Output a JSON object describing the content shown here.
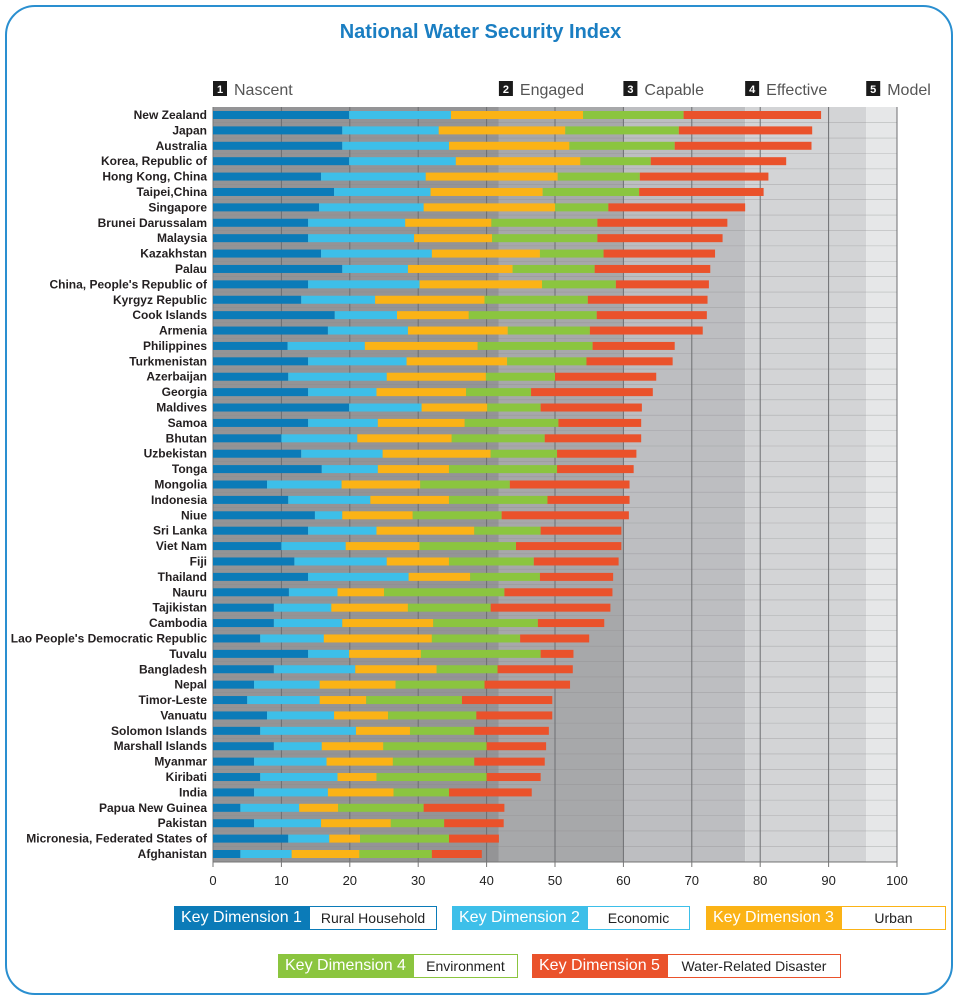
{
  "chart_data": {
    "type": "bar",
    "orientation": "horizontal",
    "stacked": true,
    "title": "National Water Security Index",
    "xlim": [
      0,
      100
    ],
    "xticks": [
      0,
      10,
      20,
      30,
      40,
      50,
      60,
      70,
      80,
      90,
      100
    ],
    "grid": true,
    "legend_position": "bottom",
    "stages": [
      {
        "num": "1",
        "label": "Nascent",
        "from": 0,
        "to": 41.8,
        "color": "#949496"
      },
      {
        "num": "2",
        "label": "Engaged",
        "from": 41.8,
        "to": 60,
        "color": "#a7a8aa"
      },
      {
        "num": "3",
        "label": "Capable",
        "from": 60,
        "to": 77.8,
        "color": "#bdbec1"
      },
      {
        "num": "4",
        "label": "Effective",
        "from": 77.8,
        "to": 95.5,
        "color": "#d3d4d6"
      },
      {
        "num": "5",
        "label": "Model",
        "from": 95.5,
        "to": 100,
        "color": "#e6e7e8"
      }
    ],
    "series": [
      {
        "name": "Key Dimension 1",
        "desc": "Rural Household",
        "color": "#0b7bb8"
      },
      {
        "name": "Key Dimension 2",
        "desc": "Economic",
        "color": "#3dbfe9"
      },
      {
        "name": "Key Dimension 3",
        "desc": "Urban",
        "color": "#fbb316"
      },
      {
        "name": "Key Dimension 4",
        "desc": "Environment",
        "color": "#8bc53f"
      },
      {
        "name": "Key Dimension 5",
        "desc": "Water-Related Disaster",
        "color": "#ea522b"
      }
    ],
    "categories": [
      "New Zealand",
      "Japan",
      "Australia",
      "Korea, Republic of",
      "Hong Kong, China",
      "Taipei,China",
      "Singapore",
      "Brunei Darussalam",
      "Malaysia",
      "Kazakhstan",
      "Palau",
      "China, People's Republic of",
      "Kyrgyz Republic",
      "Cook Islands",
      "Armenia",
      "Philippines",
      "Turkmenistan",
      "Azerbaijan",
      "Georgia",
      "Maldives",
      "Samoa",
      "Bhutan",
      "Uzbekistan",
      "Tonga",
      "Mongolia",
      "Indonesia",
      "Niue",
      "Sri Lanka",
      "Viet Nam",
      "Fiji",
      "Thailand",
      "Nauru",
      "Tajikistan",
      "Cambodia",
      "Lao People's Democratic Republic",
      "Tuvalu",
      "Bangladesh",
      "Nepal",
      "Timor-Leste",
      "Vanuatu",
      "Solomon Islands",
      "Marshall Islands",
      "Myanmar",
      "Kiribati",
      "India",
      "Papua New Guinea",
      "Pakistan",
      "Micronesia, Federated States of",
      "Afghanistan"
    ],
    "values": [
      [
        19.9,
        14.9,
        19.3,
        14.7,
        20.1
      ],
      [
        18.9,
        14.1,
        18.5,
        16.6,
        19.5
      ],
      [
        18.9,
        15.6,
        17.6,
        15.4,
        20.0
      ],
      [
        19.9,
        15.6,
        18.2,
        10.3,
        19.8
      ],
      [
        15.8,
        15.3,
        19.3,
        12.0,
        18.8
      ],
      [
        17.7,
        14.1,
        16.4,
        14.1,
        18.2
      ],
      [
        15.5,
        15.3,
        19.2,
        7.8,
        20.0
      ],
      [
        13.9,
        14.2,
        12.6,
        15.5,
        19.0
      ],
      [
        13.9,
        15.5,
        11.4,
        15.4,
        18.3
      ],
      [
        15.8,
        16.2,
        15.8,
        9.3,
        16.3
      ],
      [
        18.9,
        9.6,
        15.3,
        12.0,
        16.9
      ],
      [
        13.9,
        16.3,
        17.9,
        10.8,
        13.6
      ],
      [
        12.9,
        10.8,
        16.0,
        15.1,
        17.5
      ],
      [
        17.8,
        9.1,
        10.5,
        18.7,
        16.1
      ],
      [
        16.8,
        11.7,
        14.6,
        12.0,
        16.5
      ],
      [
        10.9,
        11.3,
        16.5,
        16.8,
        12.0
      ],
      [
        13.9,
        14.4,
        14.7,
        11.6,
        12.6
      ],
      [
        11.0,
        14.4,
        14.5,
        10.1,
        14.8
      ],
      [
        13.9,
        10.0,
        13.1,
        9.5,
        17.8
      ],
      [
        19.9,
        10.6,
        9.6,
        7.8,
        14.8
      ],
      [
        13.9,
        10.2,
        12.7,
        13.7,
        12.1
      ],
      [
        10.0,
        11.1,
        13.8,
        13.6,
        14.1
      ],
      [
        12.9,
        11.9,
        15.8,
        9.7,
        11.6
      ],
      [
        15.9,
        8.2,
        10.4,
        15.8,
        11.2
      ],
      [
        7.9,
        10.9,
        11.5,
        13.1,
        17.5
      ],
      [
        11.0,
        12.0,
        11.5,
        14.4,
        12.0
      ],
      [
        14.9,
        4.0,
        10.3,
        13.0,
        18.6
      ],
      [
        13.9,
        10.0,
        14.3,
        9.7,
        11.8
      ],
      [
        10.0,
        9.4,
        10.8,
        14.1,
        15.4
      ],
      [
        11.9,
        13.5,
        9.1,
        12.4,
        12.4
      ],
      [
        13.9,
        14.7,
        9.0,
        10.2,
        10.7
      ],
      [
        11.1,
        7.1,
        6.8,
        17.6,
        15.8
      ],
      [
        8.9,
        8.4,
        11.2,
        12.1,
        17.5
      ],
      [
        8.9,
        10.0,
        13.3,
        15.3,
        9.7
      ],
      [
        6.9,
        9.3,
        15.8,
        12.9,
        10.1
      ],
      [
        13.9,
        6.0,
        10.5,
        17.5,
        4.8
      ],
      [
        8.9,
        11.9,
        11.9,
        8.9,
        11.0
      ],
      [
        6.0,
        9.6,
        11.1,
        13.0,
        12.5
      ],
      [
        5.0,
        10.6,
        6.8,
        14.0,
        13.2
      ],
      [
        7.9,
        9.8,
        7.9,
        12.9,
        11.1
      ],
      [
        6.9,
        14.0,
        7.9,
        9.4,
        10.9
      ],
      [
        8.9,
        7.0,
        9.0,
        15.1,
        8.7
      ],
      [
        6.0,
        10.6,
        9.7,
        11.9,
        10.3
      ],
      [
        6.9,
        11.3,
        5.7,
        16.1,
        7.9
      ],
      [
        6.0,
        10.8,
        9.6,
        8.1,
        12.1
      ],
      [
        4.0,
        8.6,
        5.7,
        12.5,
        11.8
      ],
      [
        6.0,
        9.8,
        10.2,
        7.8,
        8.7
      ],
      [
        11.0,
        6.0,
        4.5,
        13.0,
        7.3
      ],
      [
        4.0,
        7.5,
        9.9,
        10.6,
        7.3
      ]
    ]
  }
}
